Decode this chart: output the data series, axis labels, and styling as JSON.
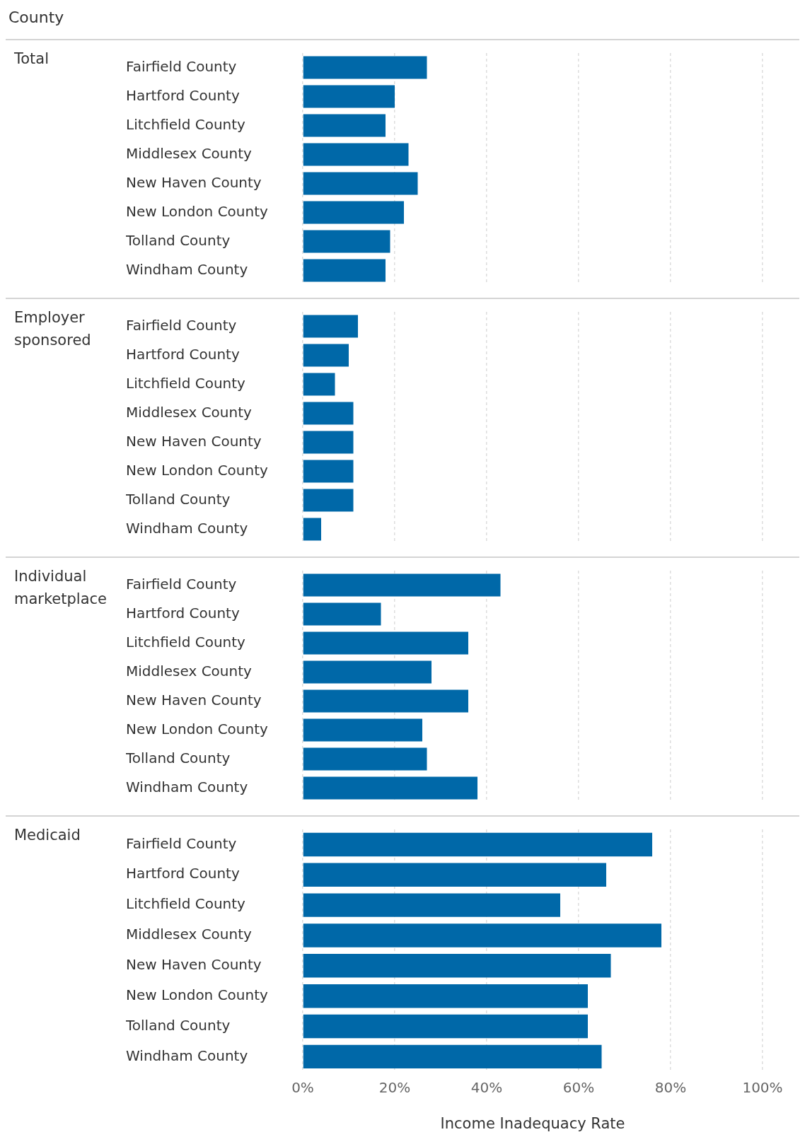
{
  "chart_data": [
    {
      "type": "bar",
      "orientation": "horizontal",
      "title": "Total",
      "annotations": [
        "County"
      ],
      "categories": [
        "Fairfield County",
        "Hartford County",
        "Litchfield County",
        "Middlesex County",
        "New Haven County",
        "New London County",
        "Tolland County",
        "Windham County"
      ],
      "values": [
        27,
        20,
        18,
        23,
        25,
        22,
        19,
        18
      ],
      "color": "#0068a8",
      "xlim": [
        0,
        100
      ],
      "xticks": [
        0,
        20,
        40,
        60,
        80,
        100
      ],
      "grid": "x",
      "legend": false,
      "tick_labels": "y"
    },
    {
      "type": "bar",
      "orientation": "horizontal",
      "title": "Employer sponsored",
      "categories": [
        "Fairfield County",
        "Hartford County",
        "Litchfield County",
        "Middlesex County",
        "New Haven County",
        "New London County",
        "Tolland County",
        "Windham County"
      ],
      "values": [
        12,
        10,
        7,
        11,
        11,
        11,
        11,
        4
      ],
      "color": "#0068a8",
      "xlim": [
        0,
        100
      ],
      "xticks": [
        0,
        20,
        40,
        60,
        80,
        100
      ],
      "grid": "x",
      "legend": false,
      "tick_labels": "y"
    },
    {
      "type": "bar",
      "orientation": "horizontal",
      "title": "Individual marketplace",
      "categories": [
        "Fairfield County",
        "Hartford County",
        "Litchfield County",
        "Middlesex County",
        "New Haven County",
        "New London County",
        "Tolland County",
        "Windham County"
      ],
      "values": [
        43,
        17,
        36,
        28,
        36,
        26,
        27,
        38
      ],
      "color": "#0068a8",
      "xlim": [
        0,
        100
      ],
      "xticks": [
        0,
        20,
        40,
        60,
        80,
        100
      ],
      "grid": "x",
      "legend": false,
      "tick_labels": "y"
    },
    {
      "type": "bar",
      "orientation": "horizontal",
      "title": "Medicaid",
      "xlabel": "Income Inadequacy Rate",
      "categories": [
        "Fairfield County",
        "Hartford County",
        "Litchfield County",
        "Middlesex County",
        "New Haven County",
        "New London County",
        "Tolland County",
        "Windham County"
      ],
      "values": [
        76,
        66,
        56,
        78,
        67,
        62,
        62,
        65
      ],
      "color": "#0068a8",
      "xlim": [
        0,
        100
      ],
      "xticks": [
        {
          "value": 0,
          "label": "0%"
        },
        {
          "value": 20,
          "label": "20%"
        },
        {
          "value": 40,
          "label": "40%"
        },
        {
          "value": 60,
          "label": "60%"
        },
        {
          "value": 80,
          "label": "80%"
        },
        {
          "value": 100,
          "label": "100%"
        }
      ],
      "grid": "x",
      "legend": false
    }
  ]
}
